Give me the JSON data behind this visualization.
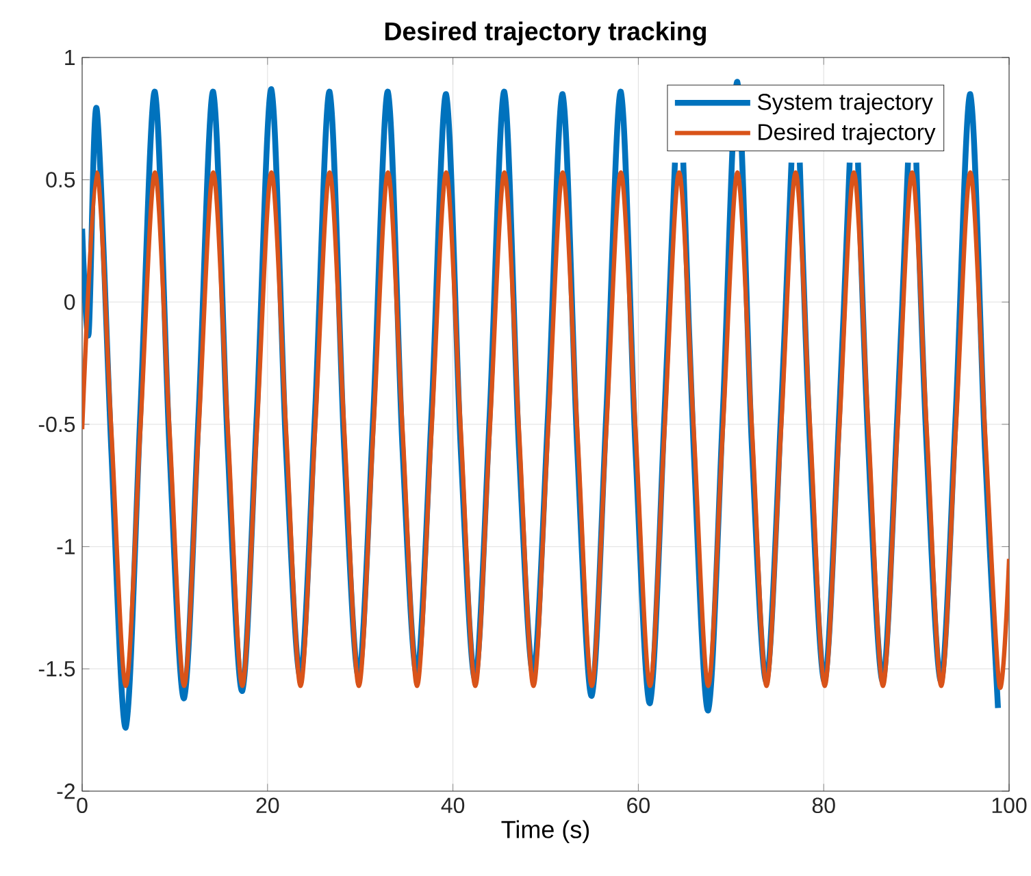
{
  "chart_data": {
    "type": "line",
    "title": "Desired trajectory tracking",
    "xlabel": "Time (s)",
    "xlim": [
      0,
      100
    ],
    "ylim": [
      -2,
      1
    ],
    "xticks": [
      0,
      20,
      40,
      60,
      80,
      100
    ],
    "yticks": [
      -2,
      -1.5,
      -1,
      -0.5,
      0,
      0.5,
      1
    ],
    "grid": true,
    "legend": "top right",
    "line_style": "solid",
    "marker": "none",
    "series": [
      {
        "name": "System trajectory",
        "color": "#0072bd",
        "x": [
          0,
          0.7,
          1.57,
          3.14,
          4.71,
          6.28,
          7.85,
          9.42,
          11.0,
          12.57,
          14.14,
          15.71,
          17.28,
          18.85,
          20.42,
          21.99,
          23.56,
          25.13,
          26.7,
          28.27,
          29.85,
          31.42,
          32.99,
          34.56,
          36.13,
          37.7,
          39.27,
          40.84,
          42.41,
          43.98,
          45.55,
          47.12,
          48.69,
          50.27,
          51.84,
          53.41,
          54.98,
          56.55,
          58.12,
          59.69,
          61.26,
          62.83,
          63.95,
          64.4,
          64.85,
          65.97,
          67.54,
          69.12,
          70.69,
          72.26,
          73.83,
          75.4,
          76.52,
          76.97,
          77.42,
          78.54,
          80.11,
          81.68,
          82.8,
          83.25,
          83.7,
          84.82,
          86.39,
          87.96,
          89.09,
          89.54,
          89.99,
          91.11,
          92.68,
          94.25,
          95.82,
          97.39,
          98.8
        ],
        "values": [
          0.3,
          -0.13,
          0.79,
          -0.6,
          -1.74,
          -0.45,
          0.86,
          -0.6,
          -1.62,
          -0.45,
          0.86,
          -0.6,
          -1.59,
          -0.45,
          0.87,
          -0.6,
          -1.53,
          -0.45,
          0.86,
          -0.6,
          -1.53,
          -0.45,
          0.86,
          -0.6,
          -1.52,
          -0.45,
          0.85,
          -0.6,
          -1.54,
          -0.45,
          0.86,
          -0.6,
          -1.52,
          -0.45,
          0.85,
          -0.6,
          -1.61,
          -0.45,
          0.86,
          -0.6,
          -1.64,
          -0.45,
          0.57,
          null,
          0.57,
          -0.6,
          -1.67,
          -0.45,
          0.9,
          -0.6,
          -1.55,
          -0.45,
          0.57,
          null,
          0.57,
          -0.6,
          -1.55,
          -0.45,
          0.57,
          null,
          0.57,
          -0.6,
          -1.55,
          -0.45,
          0.57,
          null,
          0.57,
          -0.6,
          -1.55,
          -0.45,
          0.85,
          -0.6,
          -1.66
        ]
      },
      {
        "name": "Desired trajectory",
        "color": "#d95319",
        "x": [
          0,
          1.57,
          3.14,
          4.71,
          6.28,
          7.85,
          9.42,
          11.0,
          12.57,
          14.14,
          15.71,
          17.28,
          18.85,
          20.42,
          21.99,
          23.56,
          25.13,
          26.7,
          28.27,
          29.85,
          31.42,
          32.99,
          34.56,
          36.13,
          37.7,
          39.27,
          40.84,
          42.41,
          43.98,
          45.55,
          47.12,
          48.69,
          50.27,
          51.84,
          53.41,
          54.98,
          56.55,
          58.12,
          59.69,
          61.26,
          62.83,
          64.4,
          65.97,
          67.54,
          69.12,
          70.69,
          72.26,
          73.83,
          75.4,
          76.97,
          78.54,
          80.11,
          81.68,
          83.25,
          84.82,
          86.39,
          87.96,
          89.54,
          91.11,
          92.68,
          94.25,
          95.82,
          97.39,
          98.96,
          100
        ],
        "values": [
          -0.52,
          0.53,
          -0.52,
          -1.57,
          -0.52,
          0.53,
          -0.52,
          -1.57,
          -0.52,
          0.53,
          -0.52,
          -1.57,
          -0.52,
          0.53,
          -0.52,
          -1.57,
          -0.52,
          0.53,
          -0.52,
          -1.57,
          -0.52,
          0.53,
          -0.52,
          -1.57,
          -0.52,
          0.53,
          -0.52,
          -1.57,
          -0.52,
          0.53,
          -0.52,
          -1.57,
          -0.52,
          0.53,
          -0.52,
          -1.57,
          -0.52,
          0.53,
          -0.52,
          -1.57,
          -0.52,
          0.53,
          -0.52,
          -1.57,
          -0.52,
          0.53,
          -0.52,
          -1.57,
          -0.52,
          0.53,
          -0.52,
          -1.57,
          -0.52,
          0.53,
          -0.52,
          -1.57,
          -0.52,
          0.53,
          -0.52,
          -1.57,
          -0.52,
          0.53,
          -0.52,
          -1.57,
          -1.05
        ]
      }
    ]
  }
}
